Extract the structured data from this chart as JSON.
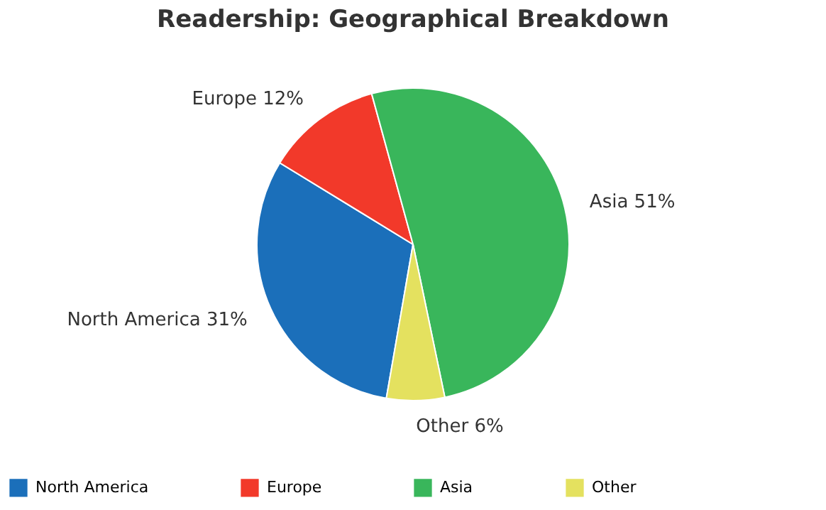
{
  "chart_data": {
    "type": "pie",
    "title": "Readership: Geographical Breakdown",
    "categories": [
      "North America",
      "Europe",
      "Asia",
      "Other"
    ],
    "values": [
      31,
      12,
      51,
      6
    ],
    "colors": [
      "#1b6fba",
      "#f2392a",
      "#39b65b",
      "#e4e15f"
    ],
    "value_labels": [
      "North America 31%",
      "Europe 12%",
      "Asia 51%",
      "Other 6%"
    ],
    "legend": "bottom"
  }
}
